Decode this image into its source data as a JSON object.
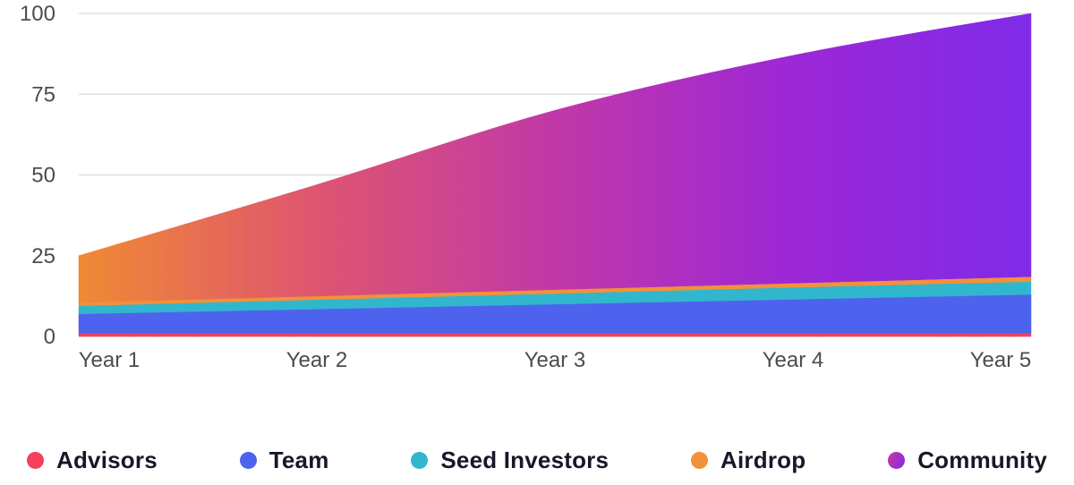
{
  "chart_data": {
    "type": "area",
    "stacked": true,
    "title": "",
    "xlabel": "",
    "ylabel": "",
    "categories": [
      "Year 1",
      "Year 2",
      "Year 3",
      "Year 4",
      "Year 5"
    ],
    "yticks": [
      0,
      25,
      50,
      75,
      100
    ],
    "ylim": [
      0,
      100
    ],
    "grid": true,
    "legend_position": "bottom",
    "axis_text_color": "#4C4C4C",
    "grid_color": "#DADADA",
    "legend_text_color": "#17172A",
    "series": [
      {
        "name": "Advisors",
        "color": "#F43F5E",
        "values": [
          1,
          1,
          1,
          1,
          1
        ]
      },
      {
        "name": "Team",
        "color": "#4D63EE",
        "values": [
          6,
          7.5,
          9,
          10.5,
          12
        ]
      },
      {
        "name": "Seed Investors",
        "color": "#30B7CD",
        "values": [
          2.5,
          2.9,
          3.3,
          3.7,
          4
        ]
      },
      {
        "name": "Airdrop",
        "color": "#F2913A",
        "values": [
          1,
          1.1,
          1.2,
          1.3,
          1.5
        ]
      },
      {
        "name": "Community",
        "gradient": [
          {
            "offset": 0,
            "color": "#F08A33"
          },
          {
            "offset": 0.25,
            "color": "#DE5570"
          },
          {
            "offset": 0.5,
            "color": "#C138A8"
          },
          {
            "offset": 0.75,
            "color": "#9C27D6"
          },
          {
            "offset": 1,
            "color": "#7F2BE8"
          }
        ],
        "dot_gradient": [
          "#C9399F",
          "#7F2BE8"
        ],
        "values": [
          14.5,
          34.5,
          55.5,
          70.5,
          81.5
        ]
      }
    ],
    "totals_by_year": [
      25,
      47,
      70,
      87,
      100
    ]
  }
}
